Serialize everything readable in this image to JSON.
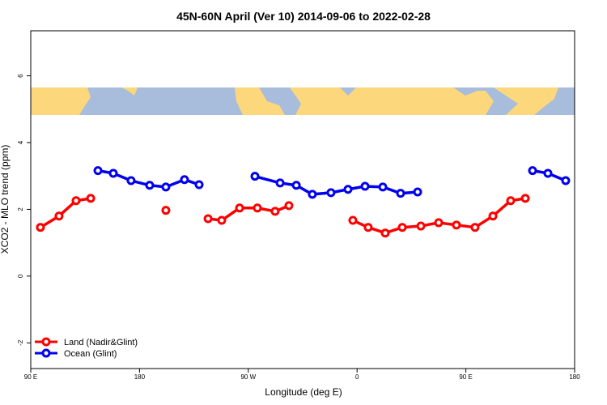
{
  "chart_data": {
    "type": "line",
    "title": "45N-60N April (Ver 10)   2014-09-06 to 2022-02-28",
    "x_label": "Longitude (deg E)",
    "y_label": "XCO2 - MLO trend (ppm)",
    "xlim": [
      90,
      540
    ],
    "xticks": [
      {
        "value": 90,
        "label": "90 E"
      },
      {
        "value": 180,
        "label": "180"
      },
      {
        "value": 270,
        "label": "90 W"
      },
      {
        "value": 360,
        "label": "0"
      },
      {
        "value": 450,
        "label": "90 E"
      },
      {
        "value": 540,
        "label": "180"
      }
    ],
    "ylim": [
      -2.77,
      7.35
    ],
    "yticks": [
      -2,
      0,
      2,
      4,
      6
    ],
    "legend": "bottom-left",
    "series": [
      {
        "name": "Land (Nadir&Glint)",
        "color": "#ff0000",
        "x": [
          98.0,
          113.4,
          127.5,
          139.6,
          null,
          201.8,
          null,
          236.7,
          248.0,
          262.8,
          277.5,
          292.2,
          303.6,
          null,
          356.5,
          369.2,
          383.3,
          397.4,
          412.8,
          427.5,
          442.2,
          457.6,
          472.4,
          487.1,
          499.2
        ],
        "values": [
          1.46,
          1.8,
          2.26,
          2.33,
          null,
          1.97,
          null,
          1.72,
          1.67,
          2.04,
          2.04,
          1.94,
          2.11,
          null,
          1.67,
          1.46,
          1.29,
          1.46,
          1.5,
          1.6,
          1.53,
          1.46,
          1.8,
          2.26,
          2.33
        ]
      },
      {
        "name": "Ocean (Glint)",
        "color": "#0000ee",
        "x": [
          145.6,
          158.3,
          173.0,
          188.4,
          201.8,
          217.2,
          229.3,
          null,
          275.5,
          296.3,
          309.7,
          323.0,
          338.4,
          352.5,
          366.6,
          381.3,
          396.0,
          410.1,
          null,
          505.2,
          517.9,
          532.6
        ],
        "values": [
          3.16,
          3.08,
          2.86,
          2.72,
          2.67,
          2.89,
          2.74,
          null,
          2.99,
          2.79,
          2.72,
          2.45,
          2.5,
          2.6,
          2.69,
          2.67,
          2.48,
          2.52,
          null,
          3.16,
          3.08,
          2.86
        ]
      }
    ]
  }
}
